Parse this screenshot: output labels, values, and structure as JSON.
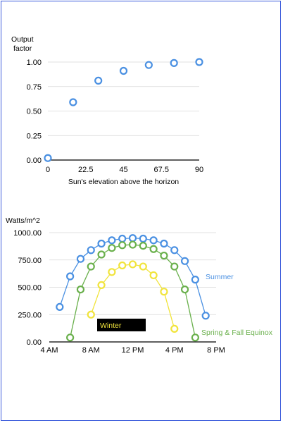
{
  "chart_data": [
    {
      "type": "scatter",
      "ylabel_line1": "Output",
      "ylabel_line2": "factor",
      "xlabel": "Sun's elevation above the horizon",
      "xlim": [
        0,
        90
      ],
      "ylim": [
        0,
        1
      ],
      "x_ticks": [
        "0",
        "22.5",
        "45",
        "67.5",
        "90"
      ],
      "y_ticks": [
        "0.00",
        "0.25",
        "0.50",
        "0.75",
        "1.00"
      ],
      "grid": "horizontal",
      "marker_color": "#4a90e2",
      "x": [
        0,
        15,
        30,
        45,
        60,
        75,
        90
      ],
      "y": [
        0.02,
        0.59,
        0.81,
        0.91,
        0.97,
        0.99,
        1.0
      ]
    },
    {
      "type": "line",
      "ylabel": "Watts/m^2",
      "xlim": [
        4,
        20
      ],
      "ylim": [
        0,
        1000
      ],
      "x_ticks": [
        "4 AM",
        "8 AM",
        "12 PM",
        "4 PM",
        "8 PM"
      ],
      "y_ticks": [
        "0.00",
        "250.00",
        "500.00",
        "750.00",
        "1000.00"
      ],
      "grid": "horizontal",
      "series": [
        {
          "name": "Summer",
          "color": "#4a90e2",
          "x": [
            5,
            6,
            7,
            8,
            9,
            10,
            11,
            12,
            13,
            14,
            15,
            16,
            17,
            18,
            19
          ],
          "y": [
            320,
            600,
            760,
            840,
            900,
            930,
            945,
            950,
            945,
            930,
            900,
            840,
            740,
            570,
            240
          ]
        },
        {
          "name": "Spring & Fall Equinox",
          "color": "#6ab04c",
          "x": [
            6,
            7,
            8,
            9,
            10,
            11,
            12,
            13,
            14,
            15,
            16,
            17,
            18
          ],
          "y": [
            40,
            480,
            690,
            800,
            860,
            885,
            890,
            880,
            850,
            790,
            690,
            480,
            40
          ]
        },
        {
          "name": "Winter",
          "color": "#f1e43c",
          "x": [
            8,
            9,
            10,
            11,
            12,
            13,
            14,
            15,
            16
          ],
          "y": [
            250,
            520,
            640,
            700,
            710,
            690,
            610,
            460,
            120
          ]
        }
      ]
    }
  ]
}
